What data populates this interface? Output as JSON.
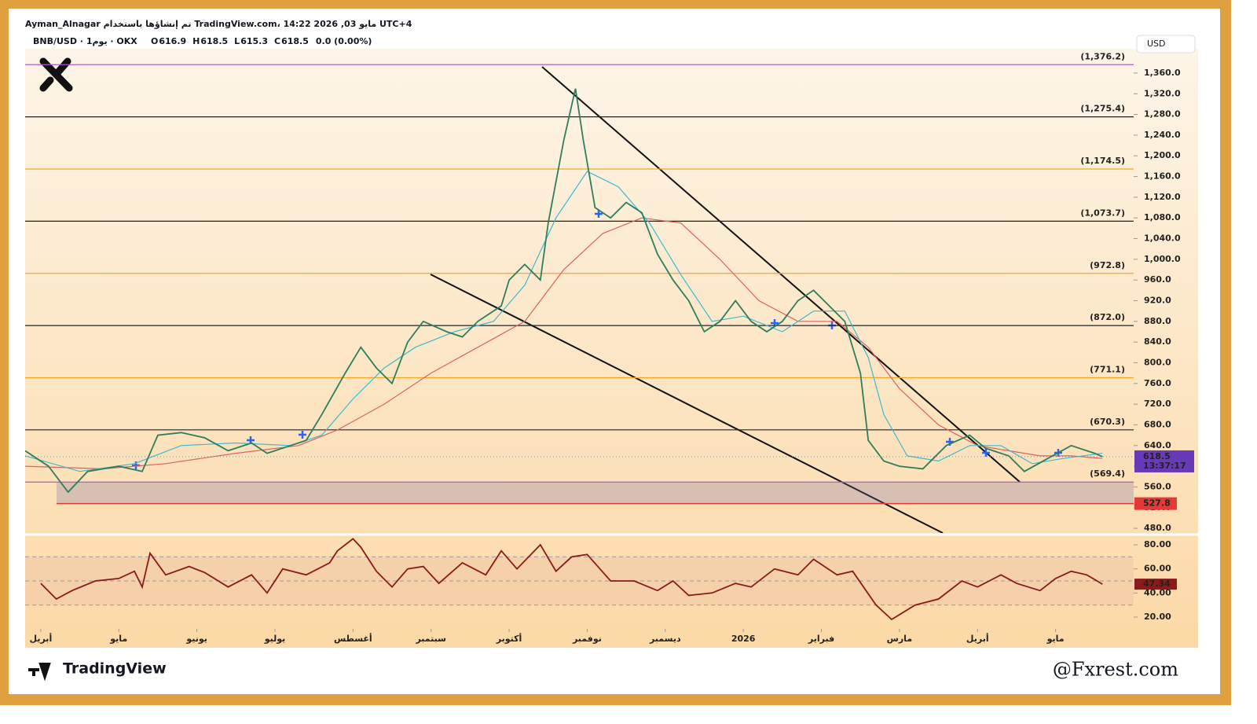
{
  "chart_data": {
    "type": "line",
    "header": "Ayman_Alnagar تم إنشاؤها باستخدام TradingView.com، 14:22 2026 ,03 مايو UTC+4",
    "symbol": "BNB/USD · 1يوم · OKX",
    "ohlc": [
      {
        "label": "O",
        "value": "616.9"
      },
      {
        "label": "H",
        "value": "618.5"
      },
      {
        "label": "L",
        "value": "615.3"
      },
      {
        "label": "C",
        "value": "618.5"
      },
      {
        "label": "",
        "value": "0.0 (0.00%)"
      }
    ],
    "currency": "USD",
    "brand": "TradingView",
    "watermark": "@Fxrest.com",
    "xlim": [
      -0.2,
      14.0
    ],
    "xticks": [
      {
        "value": 0,
        "label": "أبريل"
      },
      {
        "value": 1,
        "label": "مايو"
      },
      {
        "value": 2,
        "label": "يونيو"
      },
      {
        "value": 3,
        "label": "يوليو"
      },
      {
        "value": 4,
        "label": "أغسطس"
      },
      {
        "value": 5,
        "label": "سبتمبر"
      },
      {
        "value": 6,
        "label": "أكتوبر"
      },
      {
        "value": 7,
        "label": "نوفمبر"
      },
      {
        "value": 8,
        "label": "ديسمبر"
      },
      {
        "value": 9,
        "label": "2026"
      },
      {
        "value": 10,
        "label": "فبراير"
      },
      {
        "value": 11,
        "label": "مارس"
      },
      {
        "value": 12,
        "label": "أبريل"
      },
      {
        "value": 13,
        "label": "مايو"
      }
    ],
    "ylim": [
      471,
      1407
    ],
    "yticks": [
      {
        "value": 480,
        "label": "480.0"
      },
      {
        "value": 520,
        "label": "520.0"
      },
      {
        "value": 560,
        "label": "560.0"
      },
      {
        "value": 600,
        "label": "600.0"
      },
      {
        "value": 640,
        "label": "640.0"
      },
      {
        "value": 680,
        "label": "680.0"
      },
      {
        "value": 720,
        "label": "720.0"
      },
      {
        "value": 760,
        "label": "760.0"
      },
      {
        "value": 800,
        "label": "800.0"
      },
      {
        "value": 840,
        "label": "840.0"
      },
      {
        "value": 880,
        "label": "880.0"
      },
      {
        "value": 920,
        "label": "920.0"
      },
      {
        "value": 960,
        "label": "960.0"
      },
      {
        "value": 1000,
        "label": "1,000.0"
      },
      {
        "value": 1040,
        "label": "1,040.0"
      },
      {
        "value": 1080,
        "label": "1,080.0"
      },
      {
        "value": 1120,
        "label": "1,120.0"
      },
      {
        "value": 1160,
        "label": "1,160.0"
      },
      {
        "value": 1200,
        "label": "1,200.0"
      },
      {
        "value": 1240,
        "label": "1,240.0"
      },
      {
        "value": 1280,
        "label": "1,280.0"
      },
      {
        "value": 1320,
        "label": "1,320.0"
      },
      {
        "value": 1360,
        "label": "1,360.0"
      }
    ],
    "levels": [
      {
        "value": 1376.2,
        "label": "(1,376.2)",
        "color": "#b05cc8"
      },
      {
        "value": 1275.4,
        "label": "(1,275.4)",
        "color": "#222222"
      },
      {
        "value": 1174.5,
        "label": "(1,174.5)",
        "color": "#f5a623"
      },
      {
        "value": 1073.7,
        "label": "(1,073.7)",
        "color": "#222222"
      },
      {
        "value": 972.8,
        "label": "(972.8)",
        "color": "#f5a623"
      },
      {
        "value": 872.0,
        "label": "(872.0)",
        "color": "#222222"
      },
      {
        "value": 771.1,
        "label": "(771.1)",
        "color": "#f5a623"
      },
      {
        "value": 670.3,
        "label": "(670.3)",
        "color": "#222222"
      },
      {
        "value": 569.4,
        "label": "(569.4)",
        "color": "#b05cc8"
      }
    ],
    "support": {
      "value": 527.8,
      "label": "527.8",
      "color": "#e53935"
    },
    "last": {
      "value": 618.5,
      "label": "618.5",
      "countdown": "13:37:17",
      "color": "#673ab7"
    },
    "series": [
      {
        "color": "#2e7d5b",
        "x": [
          -0.2,
          0.1,
          0.35,
          0.6,
          1.0,
          1.3,
          1.5,
          1.8,
          2.1,
          2.4,
          2.7,
          2.9,
          3.2,
          3.4,
          3.6,
          3.9,
          4.1,
          4.3,
          4.5,
          4.7,
          4.9,
          5.2,
          5.4,
          5.6,
          5.9,
          6.0,
          6.2,
          6.4,
          6.5,
          6.7,
          6.85,
          6.95,
          7.1,
          7.3,
          7.5,
          7.7,
          7.9,
          8.1,
          8.3,
          8.5,
          8.7,
          8.9,
          9.1,
          9.3,
          9.5,
          9.7,
          9.9,
          10.1,
          10.3,
          10.5,
          10.6,
          10.8,
          11.0,
          11.3,
          11.6,
          11.9,
          12.1,
          12.4,
          12.6,
          12.9,
          13.2,
          13.5,
          13.6
        ],
        "values": [
          630,
          600,
          550,
          590,
          600,
          590,
          660,
          665,
          655,
          630,
          645,
          625,
          640,
          650,
          700,
          780,
          830,
          790,
          760,
          840,
          880,
          860,
          850,
          880,
          910,
          960,
          990,
          960,
          1070,
          1230,
          1330,
          1230,
          1100,
          1080,
          1110,
          1090,
          1010,
          960,
          920,
          860,
          880,
          920,
          880,
          860,
          880,
          920,
          940,
          910,
          880,
          780,
          650,
          610,
          600,
          595,
          640,
          660,
          635,
          620,
          590,
          615,
          640,
          625,
          618.5
        ]
      },
      {
        "color": "#3fb8d0",
        "x": [
          -0.2,
          0.5,
          1.2,
          1.8,
          2.5,
          3.2,
          3.6,
          4.0,
          4.4,
          4.8,
          5.3,
          5.8,
          6.2,
          6.6,
          7.0,
          7.4,
          7.8,
          8.2,
          8.6,
          9.0,
          9.5,
          9.9,
          10.3,
          10.6,
          10.8,
          11.1,
          11.5,
          11.9,
          12.3,
          12.7,
          13.1,
          13.6
        ],
        "values": [
          620,
          590,
          605,
          640,
          645,
          640,
          660,
          730,
          790,
          830,
          860,
          880,
          950,
          1080,
          1170,
          1140,
          1070,
          970,
          880,
          890,
          860,
          900,
          900,
          810,
          700,
          620,
          610,
          640,
          640,
          605,
          615,
          625
        ]
      },
      {
        "color": "#e06060",
        "x": [
          -0.2,
          0.8,
          1.6,
          2.5,
          3.3,
          3.8,
          4.4,
          5.0,
          5.6,
          6.2,
          6.7,
          7.2,
          7.7,
          8.2,
          8.7,
          9.2,
          9.7,
          10.2,
          10.6,
          11.0,
          11.5,
          12.0,
          12.4,
          12.8,
          13.2,
          13.6
        ],
        "values": [
          600,
          595,
          605,
          625,
          640,
          670,
          720,
          780,
          830,
          880,
          980,
          1050,
          1080,
          1070,
          1000,
          920,
          880,
          880,
          830,
          750,
          680,
          640,
          630,
          620,
          620,
          615
        ]
      }
    ],
    "rsi": {
      "ylim": [
        10.2,
        87.2
      ],
      "yticks": [
        {
          "value": 20,
          "label": "20.00"
        },
        {
          "value": 40,
          "label": "40.00"
        },
        {
          "value": 60,
          "label": "60.00"
        },
        {
          "value": 80,
          "label": "80.00"
        }
      ],
      "bands": [
        30,
        50,
        70
      ],
      "color": "#8b1a1a",
      "x": [
        0.0,
        0.2,
        0.4,
        0.7,
        1.0,
        1.2,
        1.3,
        1.4,
        1.6,
        1.9,
        2.1,
        2.4,
        2.7,
        2.9,
        3.1,
        3.4,
        3.7,
        3.8,
        4.0,
        4.1,
        4.3,
        4.5,
        4.7,
        4.9,
        5.1,
        5.4,
        5.7,
        5.9,
        6.1,
        6.4,
        6.6,
        6.8,
        7.0,
        7.3,
        7.6,
        7.9,
        8.1,
        8.3,
        8.6,
        8.9,
        9.1,
        9.4,
        9.7,
        9.9,
        10.2,
        10.4,
        10.7,
        10.9,
        11.2,
        11.5,
        11.8,
        12.0,
        12.3,
        12.5,
        12.8,
        13.0,
        13.2,
        13.4,
        13.6
      ],
      "values": [
        48,
        35,
        42,
        50,
        52,
        58,
        45,
        73,
        55,
        62,
        57,
        45,
        55,
        40,
        60,
        55,
        65,
        75,
        85,
        78,
        58,
        45,
        60,
        62,
        48,
        65,
        55,
        75,
        60,
        80,
        58,
        70,
        72,
        50,
        50,
        42,
        50,
        38,
        40,
        48,
        45,
        60,
        55,
        68,
        55,
        58,
        30,
        18,
        30,
        35,
        50,
        45,
        55,
        48,
        42,
        52,
        58,
        55,
        47.34
      ],
      "last": {
        "value": 47.34,
        "label": "47.34"
      }
    }
  }
}
